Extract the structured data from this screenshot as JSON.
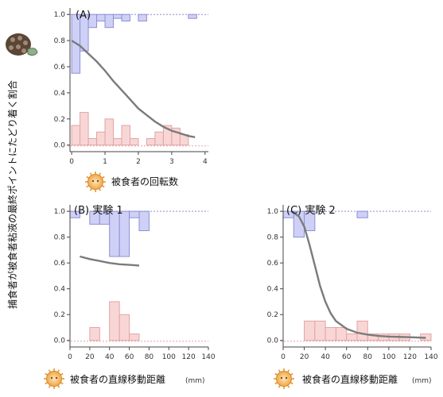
{
  "y_axis_label": "捕食者が被食者粘液の最終ポイントにたどり着く割合",
  "colors": {
    "top_fill": "#cfd0f6",
    "top_stroke": "#8e8fd6",
    "bottom_fill": "#f9d6d6",
    "bottom_stroke": "#e3a3a3",
    "curve": "#7b7b7b",
    "axis": "#444444"
  },
  "prey_icon": "prey-sun-icon",
  "chart_data": [
    {
      "type": "scatter",
      "panel": "A",
      "title": "(A)",
      "xlabel": "被食者の回転数",
      "xunit": "",
      "xlim": [
        -0.05,
        4.1
      ],
      "ylim": [
        -0.02,
        1.05
      ],
      "xticks": [
        0,
        1,
        2,
        3,
        4
      ],
      "yticks": [
        "0.0",
        "0.2",
        "0.4",
        "0.6",
        "0.8",
        "1.0"
      ],
      "bin_width": 0.25,
      "top_bars": [
        {
          "x": 0.0,
          "value": 0.45
        },
        {
          "x": 0.25,
          "value": 0.28
        },
        {
          "x": 0.5,
          "value": 0.1
        },
        {
          "x": 0.75,
          "value": 0.05
        },
        {
          "x": 1.0,
          "value": 0.1
        },
        {
          "x": 1.25,
          "value": 0.03
        },
        {
          "x": 1.5,
          "value": 0.05
        },
        {
          "x": 2.0,
          "value": 0.05
        },
        {
          "x": 3.5,
          "value": 0.03
        }
      ],
      "bottom_bars": [
        {
          "x": 0.0,
          "value": 0.15
        },
        {
          "x": 0.25,
          "value": 0.25
        },
        {
          "x": 0.5,
          "value": 0.05
        },
        {
          "x": 0.75,
          "value": 0.1
        },
        {
          "x": 1.0,
          "value": 0.2
        },
        {
          "x": 1.25,
          "value": 0.05
        },
        {
          "x": 1.5,
          "value": 0.15
        },
        {
          "x": 1.75,
          "value": 0.05
        },
        {
          "x": 2.25,
          "value": 0.05
        },
        {
          "x": 2.5,
          "value": 0.1
        },
        {
          "x": 2.75,
          "value": 0.15
        },
        {
          "x": 3.0,
          "value": 0.13
        },
        {
          "x": 3.25,
          "value": 0.08
        }
      ],
      "curve": [
        [
          0,
          0.8
        ],
        [
          0.25,
          0.76
        ],
        [
          0.5,
          0.7
        ],
        [
          0.75,
          0.64
        ],
        [
          1.0,
          0.57
        ],
        [
          1.25,
          0.49
        ],
        [
          1.5,
          0.42
        ],
        [
          1.75,
          0.35
        ],
        [
          2.0,
          0.28
        ],
        [
          2.25,
          0.23
        ],
        [
          2.5,
          0.18
        ],
        [
          2.75,
          0.14
        ],
        [
          3.0,
          0.11
        ],
        [
          3.25,
          0.09
        ],
        [
          3.5,
          0.07
        ],
        [
          3.7,
          0.06
        ]
      ]
    },
    {
      "type": "scatter",
      "panel": "B",
      "title": "(B) 実験 1",
      "xlabel": "被食者の直線移動距離",
      "xunit": "(mm)",
      "xlim": [
        0,
        140
      ],
      "ylim": [
        -0.02,
        1.05
      ],
      "xticks": [
        0,
        20,
        40,
        60,
        80,
        100,
        120,
        140
      ],
      "yticks": [
        "0.0",
        "0.2",
        "0.4",
        "0.6",
        "0.8",
        "1.0"
      ],
      "bin_width": 10,
      "top_bars": [
        {
          "x": 0,
          "value": 0.05
        },
        {
          "x": 20,
          "value": 0.1
        },
        {
          "x": 30,
          "value": 0.1
        },
        {
          "x": 40,
          "value": 0.35
        },
        {
          "x": 50,
          "value": 0.35
        },
        {
          "x": 60,
          "value": 0.05
        },
        {
          "x": 70,
          "value": 0.15
        }
      ],
      "bottom_bars": [
        {
          "x": 20,
          "value": 0.1
        },
        {
          "x": 40,
          "value": 0.3
        },
        {
          "x": 50,
          "value": 0.2
        },
        {
          "x": 60,
          "value": 0.05
        }
      ],
      "curve": [
        [
          10,
          0.65
        ],
        [
          20,
          0.63
        ],
        [
          30,
          0.615
        ],
        [
          40,
          0.6
        ],
        [
          50,
          0.59
        ],
        [
          60,
          0.585
        ],
        [
          70,
          0.58
        ]
      ]
    },
    {
      "type": "scatter",
      "panel": "C",
      "title": "(C) 実験 2",
      "xlabel": "被食者の直線移動距離",
      "xunit": "(mm)",
      "xlim": [
        0,
        140
      ],
      "ylim": [
        -0.02,
        1.05
      ],
      "xticks": [
        0,
        20,
        40,
        60,
        80,
        100,
        120,
        140
      ],
      "yticks": [
        "0.0",
        "0.2",
        "0.4",
        "0.6",
        "0.8",
        "1.0"
      ],
      "bin_width": 10,
      "top_bars": [
        {
          "x": 0,
          "value": 0.05
        },
        {
          "x": 10,
          "value": 0.2
        },
        {
          "x": 20,
          "value": 0.15
        },
        {
          "x": 70,
          "value": 0.05
        }
      ],
      "bottom_bars": [
        {
          "x": 20,
          "value": 0.15
        },
        {
          "x": 30,
          "value": 0.15
        },
        {
          "x": 40,
          "value": 0.1
        },
        {
          "x": 50,
          "value": 0.1
        },
        {
          "x": 60,
          "value": 0.05
        },
        {
          "x": 70,
          "value": 0.15
        },
        {
          "x": 80,
          "value": 0.05
        },
        {
          "x": 90,
          "value": 0.05
        },
        {
          "x": 100,
          "value": 0.05
        },
        {
          "x": 110,
          "value": 0.05
        },
        {
          "x": 130,
          "value": 0.05
        }
      ],
      "curve": [
        [
          8,
          1.0
        ],
        [
          15,
          0.96
        ],
        [
          20,
          0.88
        ],
        [
          25,
          0.74
        ],
        [
          30,
          0.58
        ],
        [
          35,
          0.42
        ],
        [
          40,
          0.3
        ],
        [
          45,
          0.21
        ],
        [
          50,
          0.15
        ],
        [
          60,
          0.09
        ],
        [
          70,
          0.06
        ],
        [
          80,
          0.045
        ],
        [
          90,
          0.035
        ],
        [
          100,
          0.03
        ],
        [
          120,
          0.025
        ],
        [
          135,
          0.02
        ]
      ]
    }
  ]
}
